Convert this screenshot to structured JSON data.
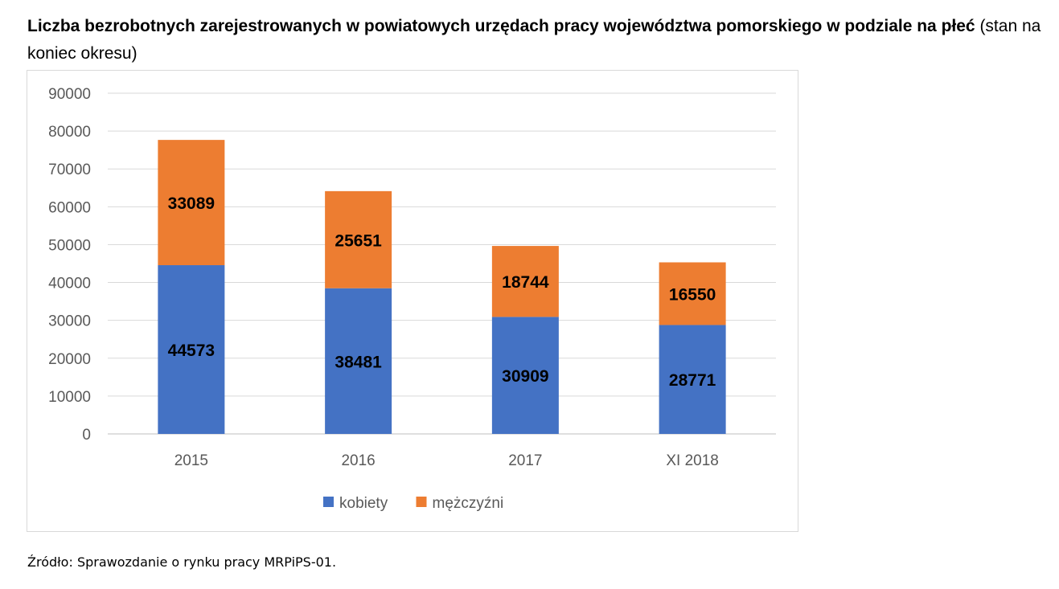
{
  "title": {
    "bold": "Liczba bezrobotnych zarejestrowanych w powiatowych urzędach pracy województwa pomorskiego w podziale na płeć",
    "normal": "(stan na koniec okresu)"
  },
  "source": "Źródło: Sprawozdanie o rynku pracy MRPiPS-01.",
  "chart_data": {
    "type": "bar",
    "stacked": true,
    "categories": [
      "2015",
      "2016",
      "2017",
      "XI 2018"
    ],
    "series": [
      {
        "name": "kobiety",
        "values": [
          44573,
          38481,
          30909,
          28771
        ],
        "color": "#4472C4"
      },
      {
        "name": "mężczyźni",
        "values": [
          33089,
          25651,
          18744,
          16550
        ],
        "color": "#ED7D31"
      }
    ],
    "ylim": [
      0,
      90000
    ],
    "yticks": [
      0,
      10000,
      20000,
      30000,
      40000,
      50000,
      60000,
      70000,
      80000,
      90000
    ],
    "grid": true,
    "legend": "bottom",
    "data_labels": true
  }
}
